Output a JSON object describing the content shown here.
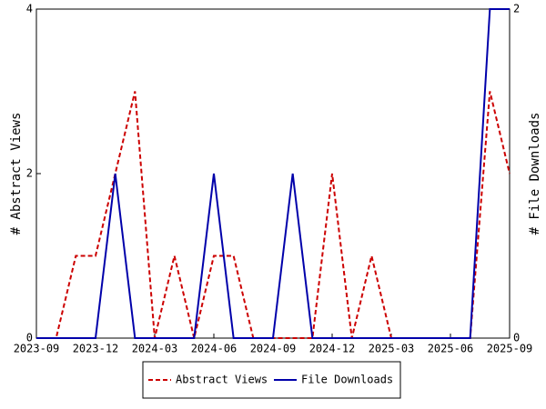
{
  "chart_data": {
    "type": "line",
    "categories": [
      "2023-09",
      null,
      null,
      "2023-12",
      null,
      null,
      "2024-03",
      null,
      null,
      "2024-06",
      null,
      null,
      "2024-09",
      null,
      null,
      "2024-12",
      null,
      null,
      "2025-03",
      null,
      null,
      "2025-06",
      null,
      null,
      "2025-09"
    ],
    "series": [
      {
        "name": "Abstract Views",
        "color": "#cc0000",
        "dash": true,
        "axis": "y",
        "values": [
          0,
          0,
          1,
          1,
          2,
          3,
          0,
          1,
          0,
          1,
          1,
          0,
          0,
          0,
          0,
          2,
          0,
          1,
          0,
          0,
          0,
          0,
          0,
          3,
          2
        ]
      },
      {
        "name": "File Downloads",
        "color": "#0000aa",
        "dash": false,
        "axis": "y2",
        "values": [
          0,
          0,
          0,
          0,
          1,
          0,
          0,
          0,
          0,
          1,
          0,
          0,
          0,
          1,
          0,
          0,
          0,
          0,
          0,
          0,
          0,
          0,
          0,
          2,
          2
        ]
      }
    ],
    "ylabel": "# Abstract Views",
    "y2label": "# File Downloads",
    "ylim": [
      0,
      4
    ],
    "yticks": [
      0,
      2,
      4
    ],
    "y2lim": [
      0,
      2
    ],
    "y2ticks": [
      0,
      2
    ],
    "legend": "bottom"
  }
}
